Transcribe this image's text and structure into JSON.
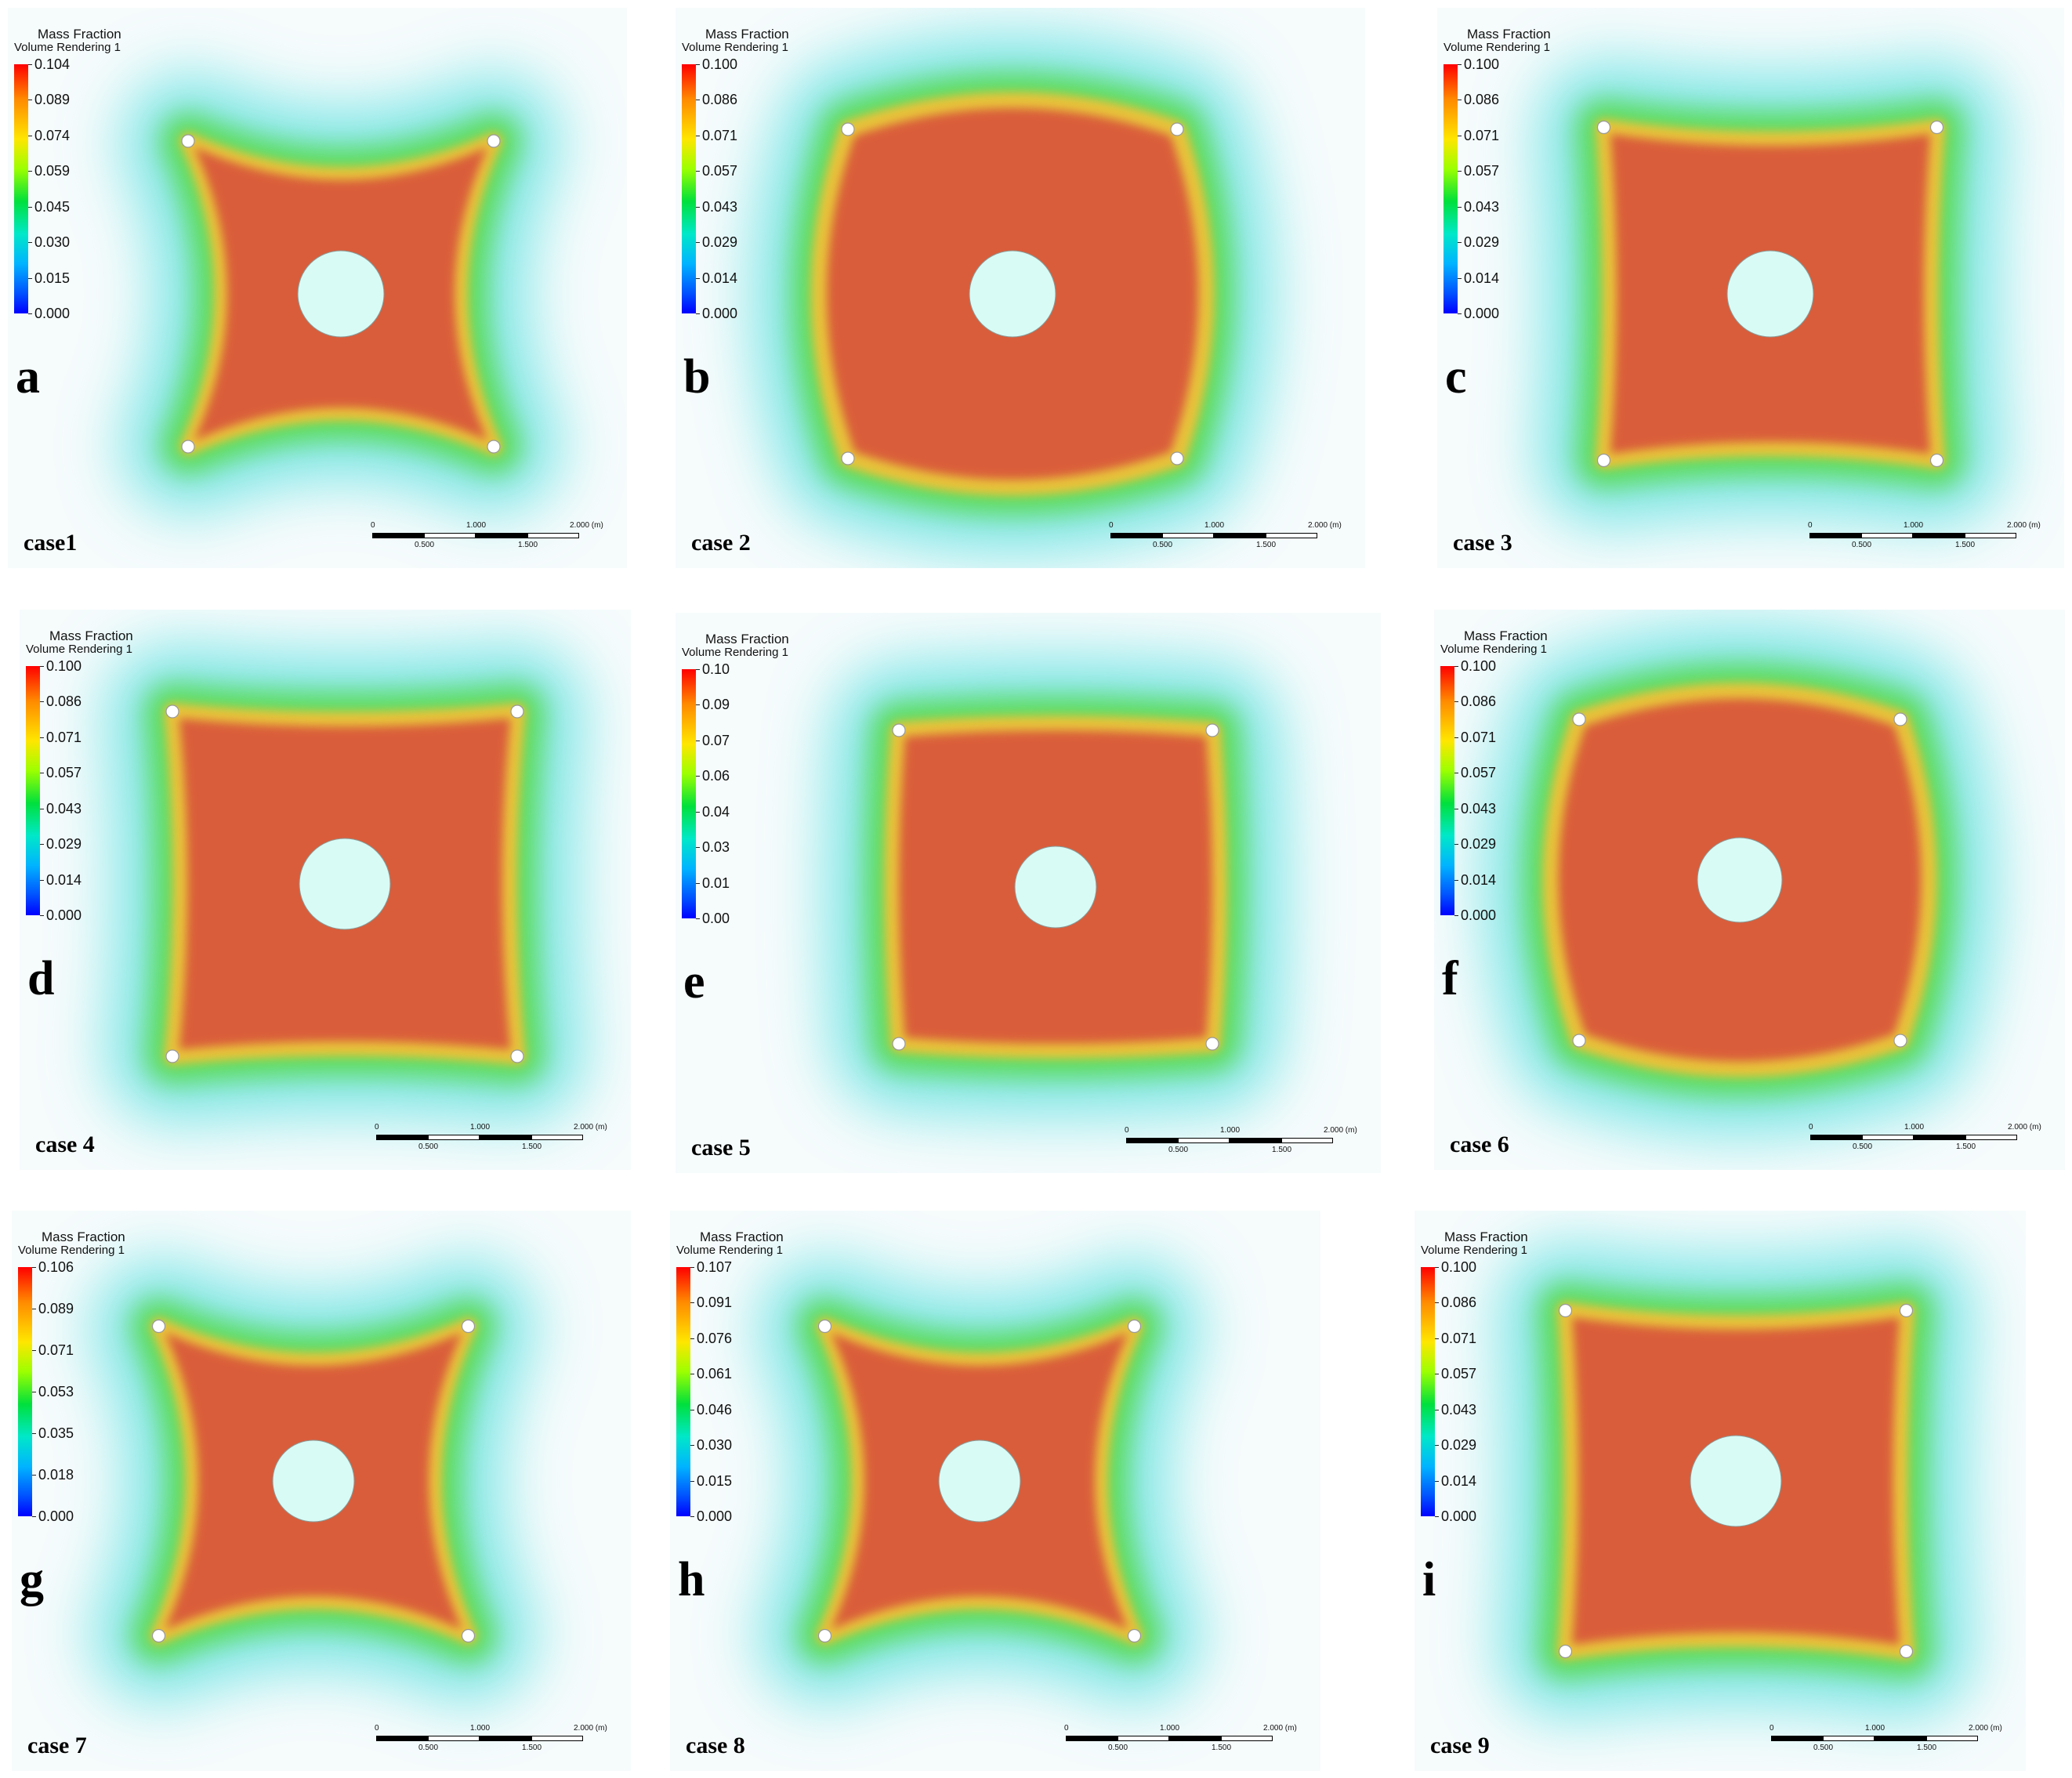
{
  "panels": [
    {
      "letter": "a",
      "case": "case1",
      "legend_title": "Mass Fraction",
      "legend_sub": "Volume Rendering 1",
      "ticks": [
        "0.104",
        "0.089",
        "0.074",
        "0.059",
        "0.045",
        "0.030",
        "0.015",
        "0.000"
      ],
      "scale": {
        "top": [
          "0",
          "1.000",
          "2.000 (m)"
        ],
        "bottom": [
          "0.500",
          "1.500"
        ]
      }
    },
    {
      "letter": "b",
      "case": "case 2",
      "legend_title": "Mass Fraction",
      "legend_sub": "Volume Rendering 1",
      "ticks": [
        "0.100",
        "0.086",
        "0.071",
        "0.057",
        "0.043",
        "0.029",
        "0.014",
        "0.000"
      ],
      "scale": {
        "top": [
          "0",
          "1.000",
          "2.000 (m)"
        ],
        "bottom": [
          "0.500",
          "1.500"
        ]
      }
    },
    {
      "letter": "c",
      "case": "case 3",
      "legend_title": "Mass Fraction",
      "legend_sub": "Volume Rendering 1",
      "ticks": [
        "0.100",
        "0.086",
        "0.071",
        "0.057",
        "0.043",
        "0.029",
        "0.014",
        "0.000"
      ],
      "scale": {
        "top": [
          "0",
          "1.000",
          "2.000 (m)"
        ],
        "bottom": [
          "0.500",
          "1.500"
        ]
      }
    },
    {
      "letter": "d",
      "case": "case 4",
      "legend_title": "Mass Fraction",
      "legend_sub": "Volume Rendering 1",
      "ticks": [
        "0.100",
        "0.086",
        "0.071",
        "0.057",
        "0.043",
        "0.029",
        "0.014",
        "0.000"
      ],
      "scale": {
        "top": [
          "0",
          "1.000",
          "2.000 (m)"
        ],
        "bottom": [
          "0.500",
          "1.500"
        ]
      }
    },
    {
      "letter": "e",
      "case": "case 5",
      "legend_title": "Mass Fraction",
      "legend_sub": "Volume Rendering 1",
      "ticks": [
        "0.10",
        "0.09",
        "0.07",
        "0.06",
        "0.04",
        "0.03",
        "0.01",
        "0.00"
      ],
      "scale": {
        "top": [
          "0",
          "1.000",
          "2.000 (m)"
        ],
        "bottom": [
          "0.500",
          "1.500"
        ]
      }
    },
    {
      "letter": "f",
      "case": "case 6",
      "legend_title": "Mass Fraction",
      "legend_sub": "Volume Rendering 1",
      "ticks": [
        "0.100",
        "0.086",
        "0.071",
        "0.057",
        "0.043",
        "0.029",
        "0.014",
        "0.000"
      ],
      "scale": {
        "top": [
          "0",
          "1.000",
          "2.000 (m)"
        ],
        "bottom": [
          "0.500",
          "1.500"
        ]
      }
    },
    {
      "letter": "g",
      "case": "case 7",
      "legend_title": "Mass Fraction",
      "legend_sub": "Volume Rendering 1",
      "ticks": [
        "0.106",
        "0.089",
        "0.071",
        "0.053",
        "0.035",
        "0.018",
        "0.000"
      ],
      "scale": {
        "top": [
          "0",
          "1.000",
          "2.000 (m)"
        ],
        "bottom": [
          "0.500",
          "1.500"
        ]
      }
    },
    {
      "letter": "h",
      "case": "case 8",
      "legend_title": "Mass Fraction",
      "legend_sub": "Volume Rendering 1",
      "ticks": [
        "0.107",
        "0.091",
        "0.076",
        "0.061",
        "0.046",
        "0.030",
        "0.015",
        "0.000"
      ],
      "scale": {
        "top": [
          "0",
          "1.000",
          "2.000 (m)"
        ],
        "bottom": [
          "0.500",
          "1.500"
        ]
      }
    },
    {
      "letter": "i",
      "case": "case 9",
      "legend_title": "Mass Fraction",
      "legend_sub": "Volume Rendering 1",
      "ticks": [
        "0.100",
        "0.086",
        "0.071",
        "0.057",
        "0.043",
        "0.029",
        "0.014",
        "0.000"
      ],
      "scale": {
        "top": [
          "0",
          "1.000",
          "2.000 (m)"
        ],
        "bottom": [
          "0.500",
          "1.500"
        ]
      }
    }
  ],
  "colors": {
    "high": "#d9583a",
    "mid": "#e8c23a",
    "green": "#5fdc5a",
    "cyan": "#7fe6e6",
    "pale": "#dff6f6",
    "center": "#d8fbf6"
  }
}
